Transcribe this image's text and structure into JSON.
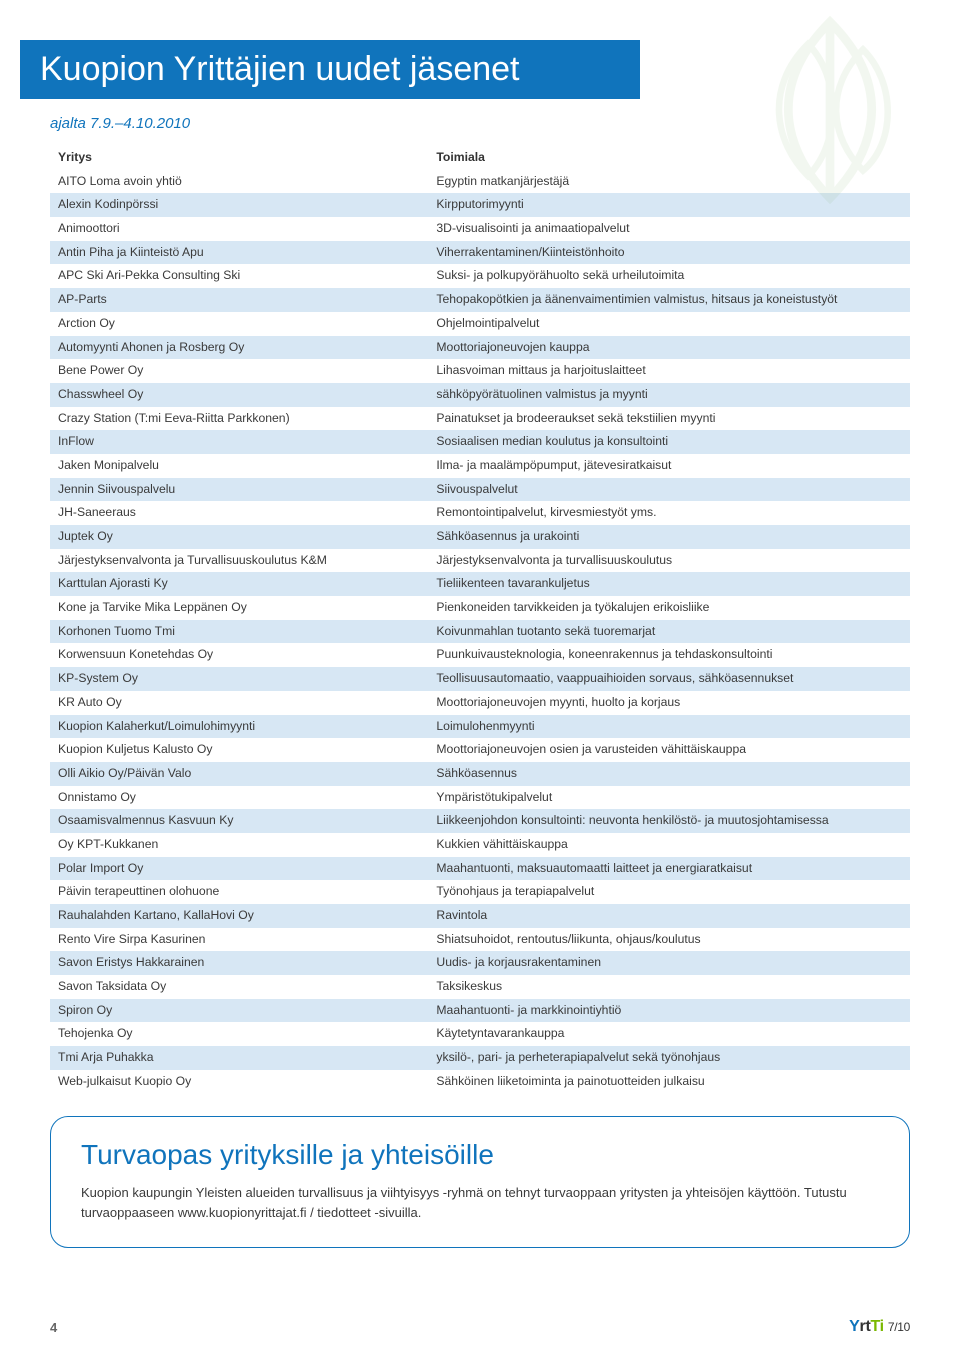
{
  "banner_title": "Kuopion Yrittäjien uudet jäsenet",
  "date_range": "ajalta 7.9.–4.10.2010",
  "table": {
    "columns": [
      "Yritys",
      "Toimiala"
    ],
    "rows": [
      [
        "AITO Loma avoin yhtiö",
        "Egyptin matkanjärjestäjä"
      ],
      [
        "Alexin Kodinpörssi",
        "Kirpputorimyynti"
      ],
      [
        "Animoottori",
        "3D-visualisointi ja animaatiopalvelut"
      ],
      [
        "Antin Piha ja Kiinteistö Apu",
        "Viherrakentaminen/Kiinteistönhoito"
      ],
      [
        "APC Ski Ari-Pekka Consulting Ski",
        "Suksi- ja polkupyörähuolto sekä urheilutoimita"
      ],
      [
        "AP-Parts",
        "Tehopakopötkien ja äänenvaimentimien valmistus, hitsaus ja koneistustyöt"
      ],
      [
        "Arction Oy",
        "Ohjelmointipalvelut"
      ],
      [
        "Automyynti Ahonen ja Rosberg Oy",
        "Moottoriajoneuvojen kauppa"
      ],
      [
        "Bene Power Oy",
        "Lihasvoiman mittaus ja harjoituslaitteet"
      ],
      [
        "Chasswheel Oy",
        "sähköpyörätuolinen valmistus ja myynti"
      ],
      [
        "Crazy Station (T:mi Eeva-Riitta Parkkonen)",
        "Painatukset ja brodeeraukset sekä tekstiilien myynti"
      ],
      [
        "InFlow",
        "Sosiaalisen median koulutus ja konsultointi"
      ],
      [
        "Jaken Monipalvelu",
        "Ilma- ja maalämpöpumput, jätevesiratkaisut"
      ],
      [
        "Jennin Siivouspalvelu",
        "Siivouspalvelut"
      ],
      [
        "JH-Saneeraus",
        "Remontointipalvelut, kirvesmiestyöt yms."
      ],
      [
        "Juptek Oy",
        "Sähköasennus ja urakointi"
      ],
      [
        "Järjestyksenvalvonta ja Turvallisuuskoulutus K&M",
        "Järjestyksenvalvonta ja turvallisuuskoulutus"
      ],
      [
        "Karttulan Ajorasti Ky",
        "Tieliikenteen tavarankuljetus"
      ],
      [
        "Kone ja Tarvike Mika Leppänen Oy",
        "Pienkoneiden tarvikkeiden ja työkalujen erikoisliike"
      ],
      [
        "Korhonen Tuomo Tmi",
        "Koivunmahlan tuotanto sekä tuoremarjat"
      ],
      [
        "Korwensuun Konetehdas Oy",
        "Puunkuivausteknologia, koneenrakennus ja tehdaskonsultointi"
      ],
      [
        "KP-System Oy",
        "Teollisuusautomaatio, vaappuaihioiden sorvaus, sähköasennukset"
      ],
      [
        "KR Auto Oy",
        "Moottoriajoneuvojen myynti, huolto ja korjaus"
      ],
      [
        "Kuopion Kalaherkut/Loimulohimyynti",
        "Loimulohenmyynti"
      ],
      [
        "Kuopion Kuljetus Kalusto Oy",
        "Moottoriajoneuvojen osien ja varusteiden vähittäiskauppa"
      ],
      [
        "Olli Aikio Oy/Päivän Valo",
        "Sähköasennus"
      ],
      [
        "Onnistamo Oy",
        "Ympäristötukipalvelut"
      ],
      [
        "Osaamisvalmennus Kasvuun Ky",
        "Liikkeenjohdon konsultointi: neuvonta henkilöstö- ja muutosjohtamisessa"
      ],
      [
        "Oy KPT-Kukkanen",
        "Kukkien vähittäiskauppa"
      ],
      [
        "Polar Import Oy",
        "Maahantuonti, maksuautomaatti laitteet ja energiaratkaisut"
      ],
      [
        "Päivin terapeuttinen olohuone",
        "Työnohjaus ja terapiapalvelut"
      ],
      [
        "Rauhalahden Kartano, KallaHovi Oy",
        "Ravintola"
      ],
      [
        "Rento Vire Sirpa Kasurinen",
        "Shiatsuhoidot, rentoutus/liikunta, ohjaus/koulutus"
      ],
      [
        "Savon Eristys Hakkarainen",
        "Uudis- ja korjausrakentaminen"
      ],
      [
        "Savon Taksidata Oy",
        "Taksikeskus"
      ],
      [
        "Spiron Oy",
        "Maahantuonti- ja markkinointiyhtiö"
      ],
      [
        "Tehojenka Oy",
        "Käytetyntavarankauppa"
      ],
      [
        "Tmi Arja Puhakka",
        "yksilö-, pari- ja perheterapiapalvelut sekä työnohjaus"
      ],
      [
        "Web-julkaisut Kuopio Oy",
        "Sähköinen liiketoiminta ja painotuotteiden julkaisu"
      ]
    ]
  },
  "infobox": {
    "title": "Turvaopas yrityksille ja yhteisöille",
    "body": "Kuopion kaupungin Yleisten alueiden turvallisuus ja viihtyisyys -ryhmä on tehnyt turvaoppaan yritysten ja yhteisöjen käyttöön. Tutustu turvaoppaaseen www.kuopionyrittajat.fi / tiedotteet -sivuilla."
  },
  "footer": {
    "page_number": "4",
    "brand_parts": {
      "y": "Y",
      "rt": "rt",
      "ti": "Ti"
    },
    "issue": "7/10"
  },
  "colors": {
    "blue": "#1074bc",
    "row_stripe": "#d7e7f4",
    "green": "#7ab800",
    "text": "#3a3a3a"
  }
}
